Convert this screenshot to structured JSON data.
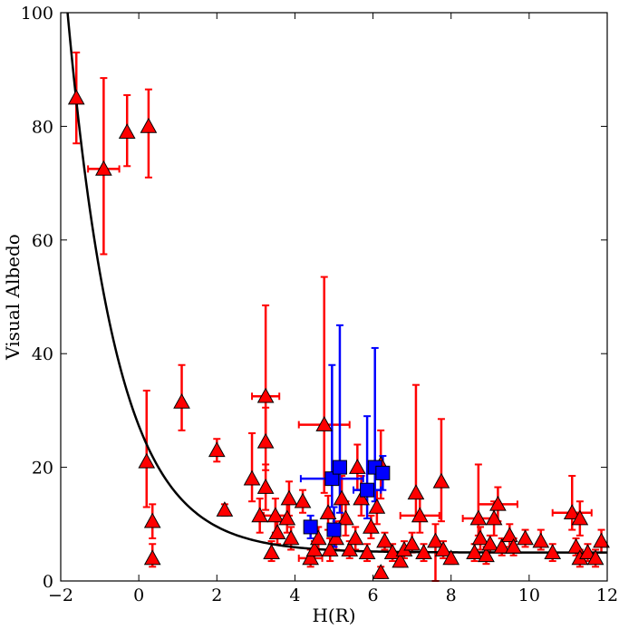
{
  "chart_data": {
    "type": "scatter",
    "xlabel": "H(R)",
    "ylabel": "Visual Albedo",
    "xlim": [
      -2,
      12
    ],
    "ylim": [
      0,
      100
    ],
    "xticks": [
      "−2",
      "0",
      "2",
      "4",
      "6",
      "8",
      "10",
      "12"
    ],
    "yticks": [
      "0",
      "20",
      "40",
      "60",
      "80",
      "100"
    ],
    "grid": false,
    "legend": "none",
    "colors": {
      "red_series": "#ff0000",
      "blue_series": "#0000ff",
      "curve": "#000000"
    },
    "series": [
      {
        "marker": "triangle",
        "color": "#ff0000",
        "points": [
          {
            "x": -1.6,
            "y": 85,
            "elo": 8,
            "ehi": 8
          },
          {
            "x": -0.9,
            "y": 72.5,
            "elo": 15,
            "ehi": 16,
            "xerr": 0.4
          },
          {
            "x": -0.3,
            "y": 79,
            "elo": 6,
            "ehi": 6.5
          },
          {
            "x": 0.25,
            "y": 80,
            "elo": 9,
            "ehi": 6.5
          },
          {
            "x": 0.2,
            "y": 21,
            "elo": 8,
            "ehi": 12.5
          },
          {
            "x": 0.35,
            "y": 10.5,
            "elo": 3,
            "ehi": 3
          },
          {
            "x": 0.35,
            "y": 4,
            "elo": 1.5,
            "ehi": 2.5
          },
          {
            "x": 1.1,
            "y": 31.5,
            "elo": 5,
            "ehi": 6.5
          },
          {
            "x": 2.0,
            "y": 23,
            "elo": 2,
            "ehi": 2
          },
          {
            "x": 2.2,
            "y": 12.5,
            "elo": 1,
            "ehi": 1
          },
          {
            "x": 2.9,
            "y": 18,
            "elo": 4,
            "ehi": 8
          },
          {
            "x": 3.1,
            "y": 11.5,
            "elo": 3,
            "ehi": 3
          },
          {
            "x": 3.25,
            "y": 32.5,
            "elo": 8,
            "ehi": 16,
            "xerr": 0.35
          },
          {
            "x": 3.25,
            "y": 24.5,
            "elo": 5,
            "ehi": 6
          },
          {
            "x": 3.25,
            "y": 16.5,
            "elo": 4,
            "ehi": 4
          },
          {
            "x": 3.4,
            "y": 5,
            "elo": 1.5,
            "ehi": 2
          },
          {
            "x": 3.5,
            "y": 11.5,
            "elo": 3,
            "ehi": 3,
            "xerr": 0.3
          },
          {
            "x": 3.55,
            "y": 8.5,
            "elo": 2,
            "ehi": 2
          },
          {
            "x": 3.8,
            "y": 11,
            "elo": 2.5,
            "ehi": 3
          },
          {
            "x": 3.85,
            "y": 14.5,
            "elo": 3,
            "ehi": 3
          },
          {
            "x": 3.9,
            "y": 7.5,
            "elo": 2,
            "ehi": 2
          },
          {
            "x": 4.2,
            "y": 14,
            "elo": 2,
            "ehi": 2
          },
          {
            "x": 4.4,
            "y": 4,
            "elo": 1.5,
            "ehi": 1.5,
            "xerr": 0.3
          },
          {
            "x": 4.5,
            "y": 5.5,
            "elo": 1.5,
            "ehi": 1.5
          },
          {
            "x": 4.6,
            "y": 7.5,
            "elo": 2,
            "ehi": 2
          },
          {
            "x": 4.75,
            "y": 27.5,
            "elo": 12,
            "ehi": 26,
            "xerr": 0.65
          },
          {
            "x": 4.85,
            "y": 12,
            "elo": 3,
            "ehi": 3
          },
          {
            "x": 4.9,
            "y": 5.5,
            "elo": 2,
            "ehi": 2
          },
          {
            "x": 5.05,
            "y": 7.5,
            "elo": 2,
            "ehi": 3
          },
          {
            "x": 5.2,
            "y": 14.5,
            "elo": 4,
            "ehi": 4
          },
          {
            "x": 5.3,
            "y": 11,
            "elo": 3,
            "ehi": 3
          },
          {
            "x": 5.4,
            "y": 5.5,
            "elo": 1.5,
            "ehi": 1.5
          },
          {
            "x": 5.55,
            "y": 7.5,
            "elo": 2,
            "ehi": 2
          },
          {
            "x": 5.6,
            "y": 20,
            "elo": 4,
            "ehi": 4
          },
          {
            "x": 5.7,
            "y": 14.5,
            "elo": 3,
            "ehi": 4
          },
          {
            "x": 5.85,
            "y": 5,
            "elo": 1.5,
            "ehi": 1.5
          },
          {
            "x": 5.95,
            "y": 9.5,
            "elo": 2,
            "ehi": 2
          },
          {
            "x": 6.1,
            "y": 13,
            "elo": 3,
            "ehi": 3
          },
          {
            "x": 6.2,
            "y": 20.5,
            "elo": 6,
            "ehi": 6
          },
          {
            "x": 6.2,
            "y": 1.5,
            "elo": 1,
            "ehi": 1
          },
          {
            "x": 6.3,
            "y": 7,
            "elo": 1.5,
            "ehi": 1.5
          },
          {
            "x": 6.5,
            "y": 5,
            "elo": 1.5,
            "ehi": 1.5
          },
          {
            "x": 6.7,
            "y": 3.5,
            "elo": 1,
            "ehi": 1
          },
          {
            "x": 6.8,
            "y": 5.5,
            "elo": 1.5,
            "ehi": 1.5
          },
          {
            "x": 7.0,
            "y": 6.5,
            "elo": 1.5,
            "ehi": 2
          },
          {
            "x": 7.1,
            "y": 15.5,
            "elo": 5,
            "ehi": 19
          },
          {
            "x": 7.2,
            "y": 11.5,
            "elo": 3,
            "ehi": 3,
            "xerr": 0.5
          },
          {
            "x": 7.3,
            "y": 5,
            "elo": 1.5,
            "ehi": 1.5
          },
          {
            "x": 7.6,
            "y": 7,
            "elo": 7,
            "ehi": 3
          },
          {
            "x": 7.75,
            "y": 17.5,
            "elo": 7,
            "ehi": 11
          },
          {
            "x": 7.8,
            "y": 5.5,
            "elo": 1.5,
            "ehi": 1.5
          },
          {
            "x": 8.0,
            "y": 4,
            "elo": 1,
            "ehi": 1
          },
          {
            "x": 8.6,
            "y": 5,
            "elo": 1.5,
            "ehi": 1.5
          },
          {
            "x": 8.7,
            "y": 11,
            "elo": 3,
            "ehi": 9.5,
            "xerr": 0.4
          },
          {
            "x": 8.75,
            "y": 7.5,
            "elo": 2,
            "ehi": 2
          },
          {
            "x": 8.9,
            "y": 4.5,
            "elo": 1.5,
            "ehi": 1.5
          },
          {
            "x": 9.0,
            "y": 6.5,
            "elo": 1.5,
            "ehi": 1.5
          },
          {
            "x": 9.1,
            "y": 11,
            "elo": 3,
            "ehi": 3
          },
          {
            "x": 9.2,
            "y": 13.5,
            "elo": 3,
            "ehi": 3,
            "xerr": 0.5
          },
          {
            "x": 9.3,
            "y": 6,
            "elo": 1.5,
            "ehi": 1.5
          },
          {
            "x": 9.5,
            "y": 8,
            "elo": 2,
            "ehi": 2
          },
          {
            "x": 9.6,
            "y": 6,
            "elo": 1.5,
            "ehi": 1.5
          },
          {
            "x": 9.9,
            "y": 7.5,
            "elo": 1.5,
            "ehi": 1.5
          },
          {
            "x": 10.3,
            "y": 7,
            "elo": 1.5,
            "ehi": 2
          },
          {
            "x": 10.6,
            "y": 5,
            "elo": 1.5,
            "ehi": 1.5
          },
          {
            "x": 11.1,
            "y": 12,
            "elo": 3,
            "ehi": 6.5,
            "xerr": 0.5
          },
          {
            "x": 11.2,
            "y": 6,
            "elo": 1.5,
            "ehi": 1.5
          },
          {
            "x": 11.3,
            "y": 11,
            "elo": 3,
            "ehi": 3
          },
          {
            "x": 11.3,
            "y": 4,
            "elo": 1.5,
            "ehi": 1.5
          },
          {
            "x": 11.5,
            "y": 5,
            "elo": 1.5,
            "ehi": 1.5
          },
          {
            "x": 11.7,
            "y": 4,
            "elo": 1.5,
            "ehi": 1.5
          },
          {
            "x": 11.85,
            "y": 7,
            "elo": 2,
            "ehi": 2
          }
        ]
      },
      {
        "marker": "square",
        "color": "#0000ff",
        "points": [
          {
            "x": 4.4,
            "y": 9.5,
            "elo": 2,
            "ehi": 2
          },
          {
            "x": 4.95,
            "y": 18,
            "elo": 5,
            "ehi": 20,
            "xerr": 0.8
          },
          {
            "x": 5.0,
            "y": 9,
            "elo": 3,
            "ehi": 4
          },
          {
            "x": 5.15,
            "y": 20,
            "elo": 8,
            "ehi": 25
          },
          {
            "x": 5.85,
            "y": 16,
            "elo": 5,
            "ehi": 13,
            "xerr": 0.35
          },
          {
            "x": 6.05,
            "y": 20,
            "elo": 6,
            "ehi": 21
          },
          {
            "x": 6.25,
            "y": 19,
            "elo": 3,
            "ehi": 3
          }
        ]
      }
    ],
    "curve": {
      "type": "line",
      "color": "#000000"
    }
  }
}
